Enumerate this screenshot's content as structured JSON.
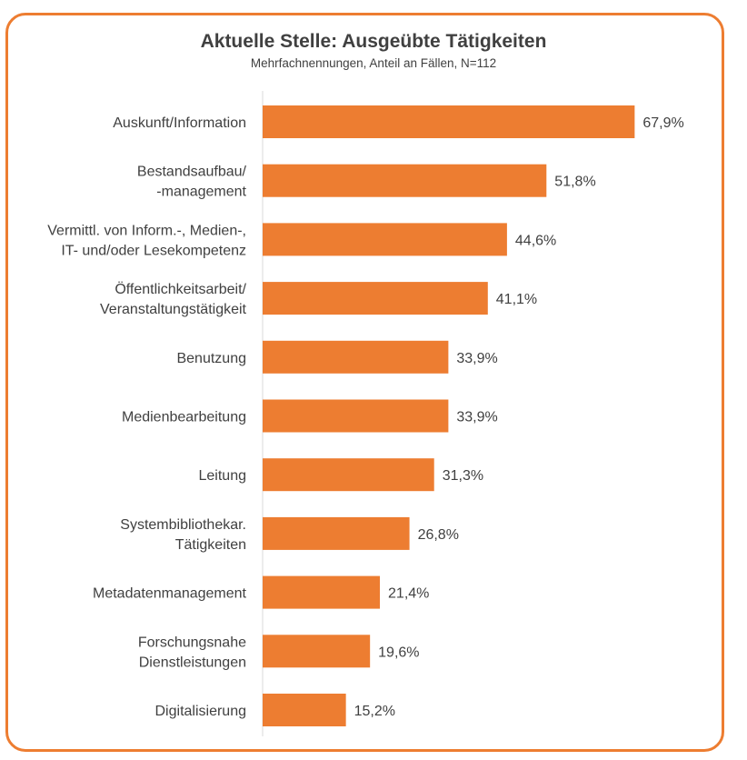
{
  "chart_data": {
    "type": "bar",
    "orientation": "horizontal",
    "title": "Aktuelle Stelle: Ausgeübte Tätigkeiten",
    "subtitle": "Mehrfachnennungen, Anteil an Fällen, N=112",
    "categories": [
      [
        "Auskunft/Information"
      ],
      [
        "Bestandsaufbau/",
        "-management"
      ],
      [
        "Vermittl. von Inform.-, Medien-,",
        "IT- und/oder Lesekompetenz"
      ],
      [
        "Öffentlichkeitsarbeit/",
        "Veranstaltungstätigkeit"
      ],
      [
        "Benutzung"
      ],
      [
        "Medienbearbeitung"
      ],
      [
        "Leitung"
      ],
      [
        "Systembibliothekar.",
        "Tätigkeiten"
      ],
      [
        "Metadatenmanagement"
      ],
      [
        "Forschungsnahe",
        "Dienstleistungen"
      ],
      [
        "Digitalisierung"
      ]
    ],
    "values": [
      67.9,
      51.8,
      44.6,
      41.1,
      33.9,
      33.9,
      31.3,
      26.8,
      21.4,
      19.6,
      15.2
    ],
    "value_labels": [
      "67,9%",
      "51,8%",
      "44,6%",
      "41,1%",
      "33,9%",
      "33,9%",
      "31,3%",
      "26,8%",
      "21,4%",
      "19,6%",
      "15,2%"
    ],
    "xlim": [
      0,
      69
    ],
    "grid": false,
    "legend": "none",
    "bar_color": "#ED7D31",
    "frame_color": "#ED7D31"
  }
}
